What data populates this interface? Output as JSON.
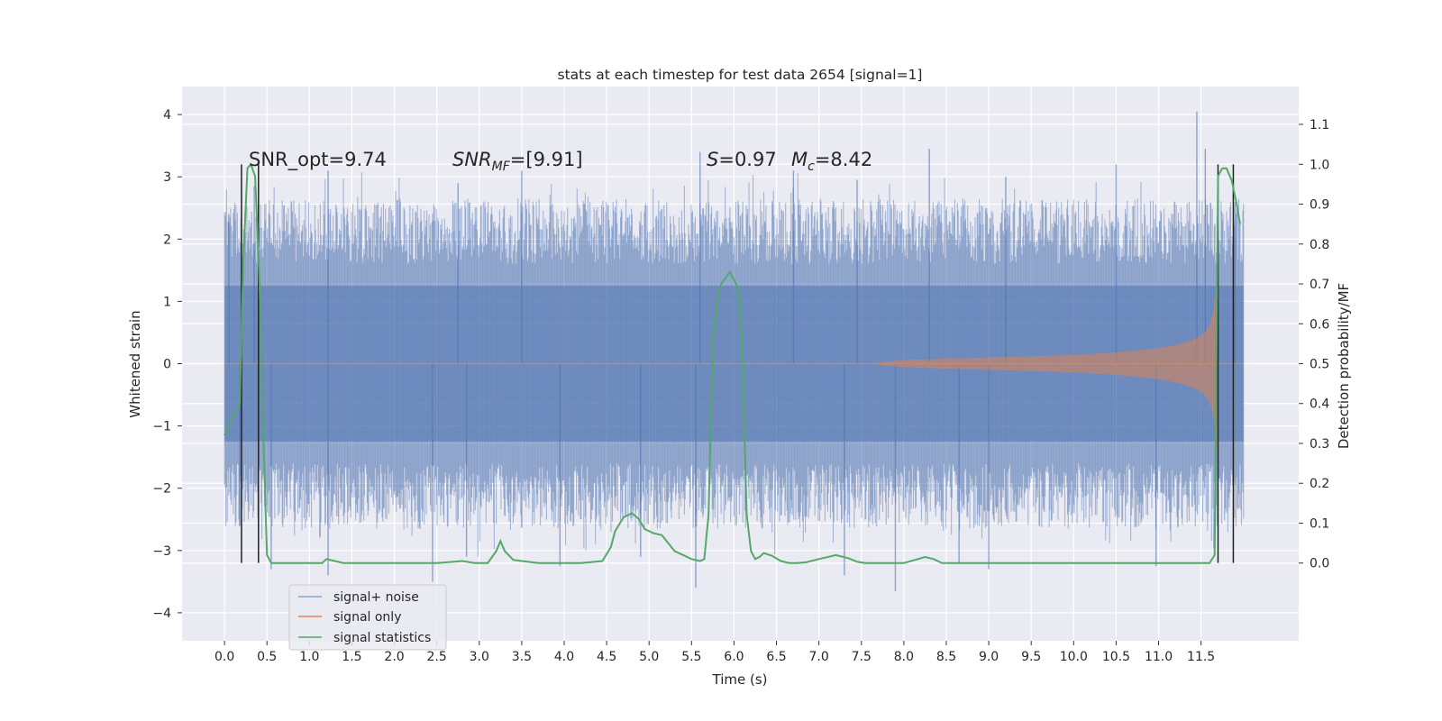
{
  "chart_data": {
    "type": "line",
    "title": "stats at each timestep for test data 2654 [signal=1]",
    "xlabel": "Time (s)",
    "ylabel": "Whitened strain",
    "y2label": "Detection probability/MF",
    "xlim": [
      -0.5,
      12.65
    ],
    "ylim": [
      -4.45,
      4.45
    ],
    "y2lim": [
      -0.195,
      1.195
    ],
    "x_ticks": [
      "0.0",
      "0.5",
      "1.0",
      "1.5",
      "2.0",
      "2.5",
      "3.0",
      "3.5",
      "4.0",
      "4.5",
      "5.0",
      "5.5",
      "6.0",
      "6.5",
      "7.0",
      "7.5",
      "8.0",
      "8.5",
      "9.0",
      "9.5",
      "10.0",
      "10.5",
      "11.0",
      "11.5"
    ],
    "y_ticks": [
      "4",
      "3",
      "2",
      "1",
      "0",
      "−1",
      "−2",
      "−3",
      "−4"
    ],
    "y2_ticks": [
      "1.1",
      "1.0",
      "0.9",
      "0.8",
      "0.7",
      "0.6",
      "0.5",
      "0.4",
      "0.3",
      "0.2",
      "0.1",
      "0.0"
    ],
    "grid": true,
    "legend_placement": "lower-left",
    "colors": {
      "noise": "#4c72b0",
      "signal": "#dd8452",
      "stats": "#55a868",
      "vlines": "#222222",
      "background": "#eaeaf2"
    },
    "annotations": {
      "snr_opt": "SNR_opt=9.74",
      "snr_mf_main": "SNR",
      "snr_mf_sub": "MF",
      "snr_mf_value": "=[9.91]",
      "s_main": "S",
      "s_value": "=0.97",
      "mc_main": "M",
      "mc_sub": "c",
      "mc_value": "=8.42"
    },
    "series": [
      {
        "name": "signal+ noise",
        "type": "noise_band",
        "x_range": [
          0.0,
          12.0
        ],
        "core_amplitude": 1.25,
        "peak_values": [
          [
            0.05,
            2.4
          ],
          [
            0.18,
            -2.6
          ],
          [
            0.35,
            2.85
          ],
          [
            0.55,
            -3.3
          ],
          [
            1.22,
            3.1
          ],
          [
            1.22,
            -3.4
          ],
          [
            2.45,
            -3.5
          ],
          [
            2.75,
            2.9
          ],
          [
            2.85,
            -3.1
          ],
          [
            3.5,
            3.1
          ],
          [
            3.95,
            -3.25
          ],
          [
            4.9,
            -3.1
          ],
          [
            5.55,
            -3.6
          ],
          [
            5.6,
            3.4
          ],
          [
            6.7,
            3.1
          ],
          [
            7.3,
            -3.4
          ],
          [
            7.45,
            2.95
          ],
          [
            7.9,
            -3.65
          ],
          [
            8.3,
            3.45
          ],
          [
            8.65,
            -3.2
          ],
          [
            9.0,
            -3.3
          ],
          [
            9.2,
            3.0
          ],
          [
            10.5,
            3.2
          ],
          [
            10.97,
            -3.25
          ],
          [
            11.45,
            4.05
          ],
          [
            11.55,
            3.45
          ],
          [
            11.7,
            3.0
          ],
          [
            11.9,
            2.6
          ]
        ]
      },
      {
        "name": "signal only",
        "type": "chirp_envelope",
        "x": [
          7.6,
          8.0,
          8.5,
          9.0,
          9.5,
          10.0,
          10.5,
          11.0,
          11.2,
          11.4,
          11.5,
          11.55,
          11.6,
          11.64,
          11.67,
          11.7
        ],
        "amplitude": [
          0.0,
          0.06,
          0.08,
          0.1,
          0.12,
          0.14,
          0.18,
          0.25,
          0.3,
          0.38,
          0.45,
          0.52,
          0.62,
          0.8,
          1.1,
          1.6
        ]
      },
      {
        "name": "signal statistics",
        "type": "line",
        "axis": "right",
        "x": [
          0.0,
          0.1,
          0.18,
          0.22,
          0.27,
          0.31,
          0.36,
          0.41,
          0.46,
          0.5,
          0.55,
          0.6,
          1.0,
          1.15,
          1.2,
          1.3,
          1.4,
          1.8,
          2.5,
          2.8,
          2.95,
          3.1,
          3.2,
          3.25,
          3.3,
          3.4,
          3.5,
          3.7,
          4.2,
          4.45,
          4.55,
          4.6,
          4.7,
          4.8,
          4.88,
          4.95,
          5.05,
          5.15,
          5.3,
          5.5,
          5.6,
          5.65,
          5.7,
          5.75,
          5.8,
          5.85,
          5.95,
          6.05,
          6.1,
          6.15,
          6.2,
          6.25,
          6.3,
          6.35,
          6.45,
          6.55,
          6.65,
          6.75,
          6.85,
          7.0,
          7.2,
          7.35,
          7.45,
          7.55,
          7.65,
          8.0,
          8.25,
          8.35,
          8.45,
          8.6,
          11.25,
          11.5,
          11.6,
          11.66,
          11.7,
          11.75,
          11.8,
          11.86,
          11.92,
          11.96
        ],
        "values": [
          0.32,
          0.37,
          0.4,
          0.75,
          0.99,
          1.0,
          0.97,
          0.72,
          0.3,
          0.02,
          0.0,
          0.0,
          0.0,
          0.0,
          0.01,
          0.005,
          0.0,
          0.0,
          0.0,
          0.005,
          0.0,
          0.0,
          0.03,
          0.055,
          0.03,
          0.008,
          0.005,
          0.0,
          0.0,
          0.005,
          0.04,
          0.08,
          0.115,
          0.125,
          0.11,
          0.085,
          0.075,
          0.07,
          0.03,
          0.01,
          0.005,
          0.01,
          0.12,
          0.55,
          0.66,
          0.7,
          0.73,
          0.69,
          0.5,
          0.12,
          0.03,
          0.01,
          0.015,
          0.025,
          0.018,
          0.005,
          0.0,
          0.0,
          0.002,
          0.01,
          0.02,
          0.012,
          0.003,
          0.0,
          0.0,
          0.0,
          0.015,
          0.01,
          0.0,
          0.0,
          0.0,
          0.0,
          0.0,
          0.02,
          0.97,
          0.99,
          0.99,
          0.96,
          0.9,
          0.85
        ]
      }
    ],
    "vertical_markers_x": [
      0.2,
      0.4,
      11.7,
      11.88
    ],
    "vertical_markers_yrange": [
      -3.2,
      3.2
    ]
  }
}
